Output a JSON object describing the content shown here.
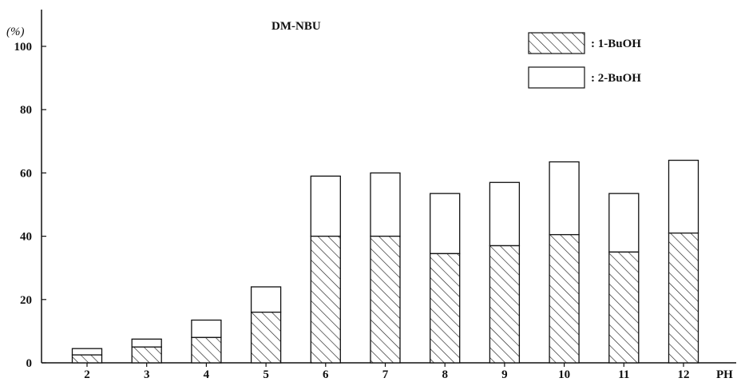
{
  "chart_data": {
    "type": "bar",
    "stacked": true,
    "title": "DM-NBU",
    "ylabel": "(%)",
    "xlabel": "PH",
    "categories": [
      "2",
      "3",
      "4",
      "5",
      "6",
      "7",
      "8",
      "9",
      "10",
      "11",
      "12"
    ],
    "ylim": [
      0,
      100
    ],
    "yticks": [
      "0",
      "20",
      "40",
      "60",
      "80",
      "100"
    ],
    "grid": false,
    "legend_position": "top-right",
    "series": [
      {
        "name": ": 1-BuOH",
        "fill": "hatched",
        "values": [
          2.5,
          5,
          8,
          16,
          40,
          40,
          34.5,
          37,
          40.5,
          35,
          41
        ]
      },
      {
        "name": ": 2-BuOH",
        "fill": "white",
        "values": [
          2,
          2.5,
          5.5,
          8,
          19,
          20,
          19,
          20,
          23,
          18.5,
          23
        ]
      }
    ]
  }
}
